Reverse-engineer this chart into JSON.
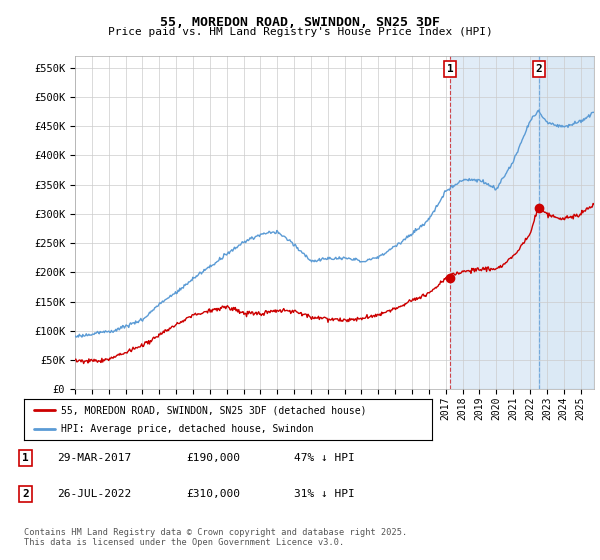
{
  "title": "55, MOREDON ROAD, SWINDON, SN25 3DF",
  "subtitle": "Price paid vs. HM Land Registry's House Price Index (HPI)",
  "ylabel_ticks": [
    "£0",
    "£50K",
    "£100K",
    "£150K",
    "£200K",
    "£250K",
    "£300K",
    "£350K",
    "£400K",
    "£450K",
    "£500K",
    "£550K"
  ],
  "ytick_values": [
    0,
    50000,
    100000,
    150000,
    200000,
    250000,
    300000,
    350000,
    400000,
    450000,
    500000,
    550000
  ],
  "ylim": [
    0,
    570000
  ],
  "xlim_start": 1995.0,
  "xlim_end": 2025.8,
  "hpi_color": "#5b9bd5",
  "price_color": "#cc0000",
  "vline1_color": "#cc0000",
  "vline2_color": "#5b9bd5",
  "shade_color": "#ddeeff",
  "background_color": "#ffffff",
  "grid_color": "#cccccc",
  "marker1_year": 2017.25,
  "marker2_year": 2022.55,
  "marker1_price": 190000,
  "marker2_price": 310000,
  "marker1_label": "1",
  "marker2_label": "2",
  "legend_line1": "55, MOREDON ROAD, SWINDON, SN25 3DF (detached house)",
  "legend_line2": "HPI: Average price, detached house, Swindon",
  "table_row1": [
    "1",
    "29-MAR-2017",
    "£190,000",
    "47% ↓ HPI"
  ],
  "table_row2": [
    "2",
    "26-JUL-2022",
    "£310,000",
    "31% ↓ HPI"
  ],
  "footnote": "Contains HM Land Registry data © Crown copyright and database right 2025.\nThis data is licensed under the Open Government Licence v3.0.",
  "xticks": [
    1995,
    1996,
    1997,
    1998,
    1999,
    2000,
    2001,
    2002,
    2003,
    2004,
    2005,
    2006,
    2007,
    2008,
    2009,
    2010,
    2011,
    2012,
    2013,
    2014,
    2015,
    2016,
    2017,
    2018,
    2019,
    2020,
    2021,
    2022,
    2023,
    2024,
    2025
  ]
}
